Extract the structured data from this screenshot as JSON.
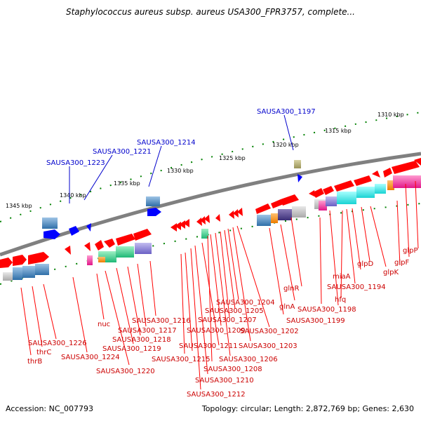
{
  "title": "Staphylococcus aureus subsp. aureus USA300_FPR3757, complete...",
  "footer": {
    "accession": "Accession: NC_007793",
    "summary": "Topology: circular; Length: 2,872,769 bp; Genes: 2,630"
  },
  "kbp_ticks": [
    "1345 kbp",
    "1340 kbp",
    "1335 kbp",
    "1330 kbp",
    "1325 kbp",
    "1320 kbp",
    "1315 kbp",
    "1310 kbp"
  ],
  "top_labels": [
    "SAUSA300_1223",
    "SAUSA300_1221",
    "SAUSA300_1214",
    "SAUSA300_1197"
  ],
  "gene_labels": [
    "glpP",
    "glpF",
    "glpK",
    "glpD",
    "miaA",
    "SAUSA300_1194",
    "hfq",
    "SAUSA300_1198",
    "glnR",
    "glnA",
    "SAUSA300_1199",
    "SAUSA300_1202",
    "SAUSA300_1203",
    "SAUSA300_1204",
    "SAUSA300_1205",
    "SAUSA300_1206",
    "SAUSA300_1207",
    "SAUSA300_1208",
    "SAUSA300_1209",
    "SAUSA300_1210",
    "SAUSA300_1211",
    "SAUSA300_1212",
    "SAUSA300_1215",
    "SAUSA300_1216",
    "SAUSA300_1217",
    "SAUSA300_1218",
    "SAUSA300_1219",
    "SAUSA300_1220",
    "nuc",
    "SAUSA300_1224",
    "SAUSA300_1226",
    "thrC",
    "thrB"
  ],
  "colors": {
    "forward_gene": "#ff0000",
    "reverse_gene": "#0000ff",
    "backbone": "#808080",
    "tick_major": "#008000",
    "label_line_red": "#ff0000",
    "label_line_blue": "#0000cc"
  }
}
